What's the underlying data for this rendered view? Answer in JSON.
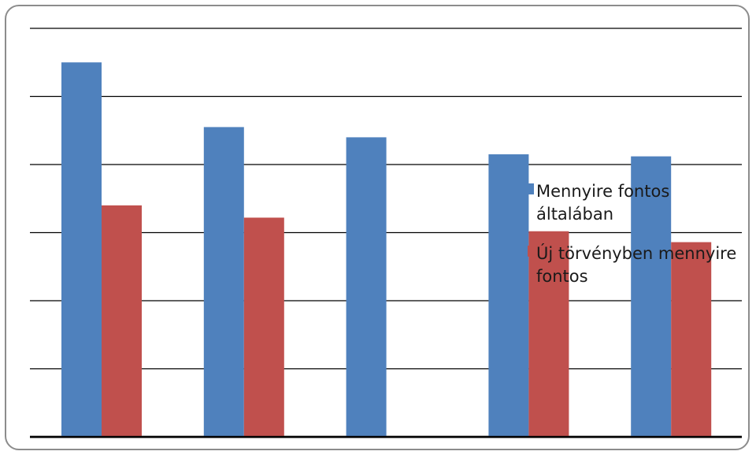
{
  "chart_data": {
    "type": "bar",
    "categories": [
      "",
      "",
      "",
      "",
      ""
    ],
    "series": [
      {
        "name": "Mennyire fontos általában",
        "color": "#4f81bd",
        "values": [
          5.5,
          4.55,
          4.4,
          4.15,
          4.12
        ]
      },
      {
        "name": "Új törvényben mennyire fontos",
        "color": "#c0504d",
        "values": [
          3.4,
          3.22,
          null,
          3.02,
          2.86
        ]
      }
    ],
    "ylim": [
      0,
      6
    ],
    "grid": true,
    "legend_position": "right",
    "legend_lines": [
      [
        "Mennyire fontos",
        "általában"
      ],
      [
        "Új törvényben mennyire",
        "fontos"
      ]
    ]
  }
}
